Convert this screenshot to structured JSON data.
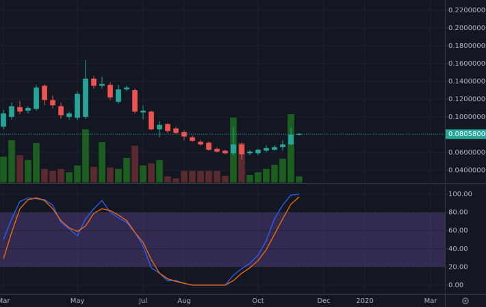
{
  "chart_data": [
    {
      "type": "candlestick",
      "x": [
        0,
        1,
        2,
        3,
        4,
        5,
        6,
        7,
        8,
        9,
        10,
        11,
        12,
        13,
        14,
        15,
        16,
        17,
        18,
        19,
        20,
        21,
        22,
        23,
        24,
        25,
        26,
        27,
        28,
        29,
        30,
        31,
        32,
        33,
        34,
        35,
        36
      ],
      "open": [
        0.089,
        0.1,
        0.111,
        0.107,
        0.109,
        0.135,
        0.119,
        0.112,
        0.1,
        0.099,
        0.1,
        0.143,
        0.135,
        0.136,
        0.117,
        0.131,
        0.13,
        0.105,
        0.106,
        0.086,
        0.092,
        0.087,
        0.083,
        0.077,
        0.072,
        0.071,
        0.064,
        0.062,
        0.059,
        0.069,
        0.059,
        0.059,
        0.062,
        0.063,
        0.066,
        0.069,
        0.08
      ],
      "high": [
        0.108,
        0.116,
        0.118,
        0.112,
        0.136,
        0.137,
        0.124,
        0.116,
        0.106,
        0.129,
        0.164,
        0.146,
        0.145,
        0.139,
        0.136,
        0.135,
        0.132,
        0.113,
        0.107,
        0.095,
        0.093,
        0.089,
        0.085,
        0.079,
        0.074,
        0.072,
        0.066,
        0.063,
        0.089,
        0.071,
        0.063,
        0.064,
        0.068,
        0.068,
        0.074,
        0.088,
        0.082
      ],
      "low": [
        0.086,
        0.097,
        0.103,
        0.104,
        0.107,
        0.113,
        0.11,
        0.098,
        0.097,
        0.096,
        0.098,
        0.132,
        0.132,
        0.119,
        0.115,
        0.129,
        0.104,
        0.097,
        0.085,
        0.077,
        0.082,
        0.081,
        0.074,
        0.072,
        0.068,
        0.062,
        0.06,
        0.058,
        0.057,
        0.052,
        0.057,
        0.057,
        0.06,
        0.062,
        0.062,
        0.068,
        0.079
      ],
      "close": [
        0.104,
        0.112,
        0.106,
        0.11,
        0.133,
        0.119,
        0.113,
        0.102,
        0.104,
        0.126,
        0.143,
        0.135,
        0.137,
        0.122,
        0.131,
        0.133,
        0.106,
        0.107,
        0.086,
        0.091,
        0.084,
        0.082,
        0.078,
        0.073,
        0.069,
        0.063,
        0.061,
        0.059,
        0.069,
        0.058,
        0.061,
        0.063,
        0.065,
        0.066,
        0.069,
        0.08,
        0.081
      ],
      "volume": [
        38,
        62,
        40,
        33,
        58,
        20,
        17,
        20,
        15,
        25,
        78,
        23,
        59,
        22,
        20,
        36,
        54,
        25,
        28,
        33,
        9,
        6,
        17,
        17,
        17,
        17,
        17,
        10,
        95,
        58,
        11,
        15,
        20,
        26,
        35,
        100,
        9
      ],
      "volume_lim": [
        0,
        267
      ],
      "up_color": "#26a69a",
      "down_color": "#ef5350",
      "volume_up_color": "#1b5e20",
      "volume_down_color": "#5b2a2e",
      "ylim": [
        0.02615,
        0.2315
      ],
      "yticks": [
        {
          "value": 0.04,
          "label": "0.04000000"
        },
        {
          "value": 0.06,
          "label": "0.06000000"
        },
        {
          "value": 0.08,
          "label": "0.08000000"
        },
        {
          "value": 0.1,
          "label": "0.10000000"
        },
        {
          "value": 0.12,
          "label": "0.12000000"
        },
        {
          "value": 0.14,
          "label": "0.14000000"
        },
        {
          "value": 0.16,
          "label": "0.16000000"
        },
        {
          "value": 0.18,
          "label": "0.18000000"
        },
        {
          "value": 0.2,
          "label": "0.20000000"
        },
        {
          "value": 0.22,
          "label": "0.22000000"
        }
      ],
      "last_price": {
        "value": 0.08058,
        "label": "0.08058000"
      },
      "xlim": [
        -0.42,
        53.75
      ],
      "xticks": [
        {
          "value": 0,
          "label": "Mar"
        },
        {
          "value": 9,
          "label": "May"
        },
        {
          "value": 17,
          "label": "Jul"
        },
        {
          "value": 22,
          "label": "Aug"
        },
        {
          "value": 31,
          "label": "Oct"
        },
        {
          "value": 39,
          "label": "Dec"
        },
        {
          "value": 44,
          "label": "2020"
        },
        {
          "value": 52,
          "label": "Mar"
        }
      ],
      "grid": true
    },
    {
      "type": "line",
      "x": [
        0,
        1,
        2,
        3,
        4,
        5,
        6,
        7,
        8,
        9,
        10,
        11,
        12,
        13,
        14,
        15,
        16,
        17,
        18,
        19,
        20,
        21,
        22,
        23,
        24,
        25,
        26,
        27,
        28,
        29,
        30,
        31,
        32,
        33,
        34,
        35,
        36
      ],
      "series": [
        {
          "color": "#2962ff",
          "values": [
            50,
            73,
            92,
            96,
            95,
            94,
            88,
            69,
            62,
            54,
            73,
            84,
            93,
            80,
            74,
            69,
            58,
            43,
            19,
            13,
            5,
            5,
            2,
            0,
            0,
            0,
            0,
            0,
            11,
            18,
            24,
            33,
            49,
            73,
            88,
            99,
            100
          ]
        },
        {
          "color": "#ff6d00",
          "values": [
            29,
            58,
            84,
            94,
            96,
            93,
            84,
            71,
            63,
            59,
            65,
            79,
            84,
            82,
            77,
            71,
            58,
            47,
            28,
            13,
            7,
            4,
            2,
            0,
            0,
            0,
            0,
            0,
            5,
            13,
            19,
            27,
            39,
            56,
            73,
            89,
            97
          ]
        }
      ],
      "band": [
        20,
        80
      ],
      "band_color": "#7e57c2",
      "ylim": [
        -9.8,
        106.8
      ],
      "yticks": [
        {
          "value": 0,
          "label": "0.00"
        },
        {
          "value": 20,
          "label": "20.00"
        },
        {
          "value": 40,
          "label": "40.00"
        },
        {
          "value": 60,
          "label": "60.00"
        },
        {
          "value": 80,
          "label": "80.00"
        },
        {
          "value": 100,
          "label": "100.00"
        }
      ],
      "xlim": [
        -0.42,
        53.75
      ],
      "grid": true
    }
  ]
}
